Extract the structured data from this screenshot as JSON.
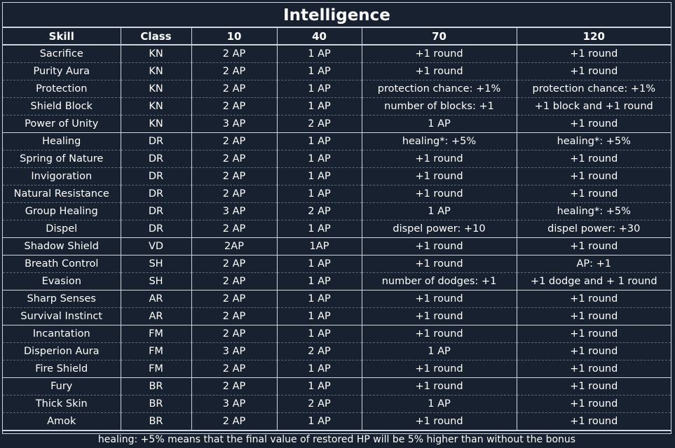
{
  "title": "Intelligence",
  "columns": [
    "Skill",
    "Class",
    "10",
    "40",
    "70",
    "120"
  ],
  "rows": [
    [
      "Sacrifice",
      "KN",
      "2 AP",
      "1 AP",
      "+1 round",
      "+1 round"
    ],
    [
      "Purity Aura",
      "KN",
      "2 AP",
      "1 AP",
      "+1 round",
      "+1 round"
    ],
    [
      "Protection",
      "KN",
      "2 AP",
      "1 AP",
      "protection chance: +1%",
      "protection chance: +1%"
    ],
    [
      "Shield Block",
      "KN",
      "2 AP",
      "1 AP",
      "number of blocks: +1",
      "+1 block and +1 round"
    ],
    [
      "Power of Unity",
      "KN",
      "3 AP",
      "2 AP",
      "1 AP",
      "+1 round"
    ],
    [
      "Healing",
      "DR",
      "2 AP",
      "1 AP",
      "healing*: +5%",
      "healing*: +5%"
    ],
    [
      "Spring of Nature",
      "DR",
      "2 AP",
      "1 AP",
      "+1 round",
      "+1 round"
    ],
    [
      "Invigoration",
      "DR",
      "2 AP",
      "1 AP",
      "+1 round",
      "+1 round"
    ],
    [
      "Natural Resistance",
      "DR",
      "2 AP",
      "1 AP",
      "+1 round",
      "+1 round"
    ],
    [
      "Group Healing",
      "DR",
      "3 AP",
      "2 AP",
      "1 AP",
      "healing*: +5%"
    ],
    [
      "Dispel",
      "DR",
      "2 AP",
      "1 AP",
      "dispel power: +10",
      "dispel power: +30"
    ],
    [
      "Shadow Shield",
      "VD",
      "2AP",
      "1AP",
      "+1 round",
      "+1 round"
    ],
    [
      "Breath Control",
      "SH",
      "2 AP",
      "1 AP",
      "+1 round",
      "AP: +1"
    ],
    [
      "Evasion",
      "SH",
      "2 AP",
      "1 AP",
      "number of dodges: +1",
      "+1 dodge and + 1 round"
    ],
    [
      "Sharp Senses",
      "AR",
      "2 AP",
      "1 AP",
      "+1 round",
      "+1 round"
    ],
    [
      "Survival Instinct",
      "AR",
      "2 AP",
      "1 AP",
      "+1 round",
      "+1 round"
    ],
    [
      "Incantation",
      "FM",
      "2 AP",
      "1 AP",
      "+1 round",
      "+1 round"
    ],
    [
      "Disperion Aura",
      "FM",
      "3 AP",
      "2 AP",
      "1 AP",
      "+1 round"
    ],
    [
      "Fire Shield",
      "FM",
      "2 AP",
      "1 AP",
      "+1 round",
      "+1 round"
    ],
    [
      "Fury",
      "BR",
      "2 AP",
      "1 AP",
      "+1 round",
      "+1 round"
    ],
    [
      "Thick Skin",
      "BR",
      "3 AP",
      "2 AP",
      "1 AP",
      "+1 round"
    ],
    [
      "Amok",
      "BR",
      "2 AP",
      "1 AP",
      "+1 round",
      "+1 round"
    ]
  ],
  "footnote": "healing: +5% means that the final value of restored HP will be 5% higher than without the bonus"
}
